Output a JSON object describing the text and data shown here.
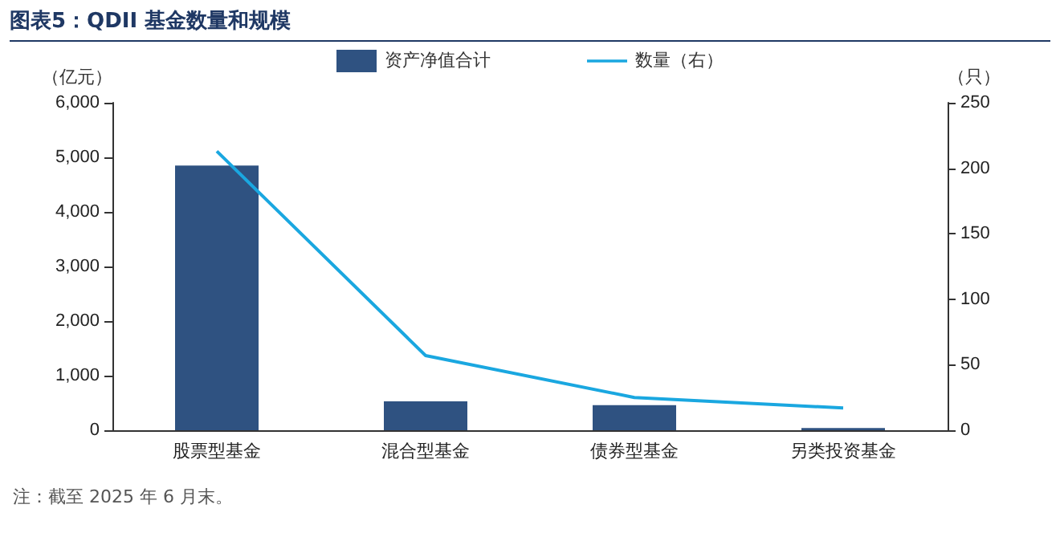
{
  "chart_data": {
    "type": "bar",
    "title": "图表5：QDII 基金数量和规模",
    "ylabel": "（亿元）",
    "y2label": "（只）",
    "categories": [
      "股票型基金",
      "混合型基金",
      "债券型基金",
      "另类投资基金"
    ],
    "series": [
      {
        "name": "资产净值合计",
        "color": "#2f5281",
        "values": [
          4850,
          530,
          460,
          40
        ]
      },
      {
        "name": "数量（右）",
        "type": "line",
        "axis": "y2",
        "color": "#1aa7e0",
        "values": [
          213,
          57,
          25,
          17
        ]
      }
    ],
    "ylim": [
      0,
      6000
    ],
    "yticks": [
      0,
      {
        "value": 1000,
        "label": "1,000"
      },
      {
        "value": 2000,
        "label": "2,000"
      },
      {
        "value": 3000,
        "label": "3,000"
      },
      {
        "value": 4000,
        "label": "4,000"
      },
      {
        "value": 5000,
        "label": "5,000"
      },
      {
        "value": 6000,
        "label": "6,000"
      }
    ],
    "y2lim": [
      0,
      250
    ],
    "y2ticks": [
      0,
      50,
      100,
      150,
      200,
      250
    ],
    "legend": "top",
    "grid": false,
    "marker": "none",
    "annotations": [
      "注：截至 2025 年 6 月末。"
    ]
  }
}
